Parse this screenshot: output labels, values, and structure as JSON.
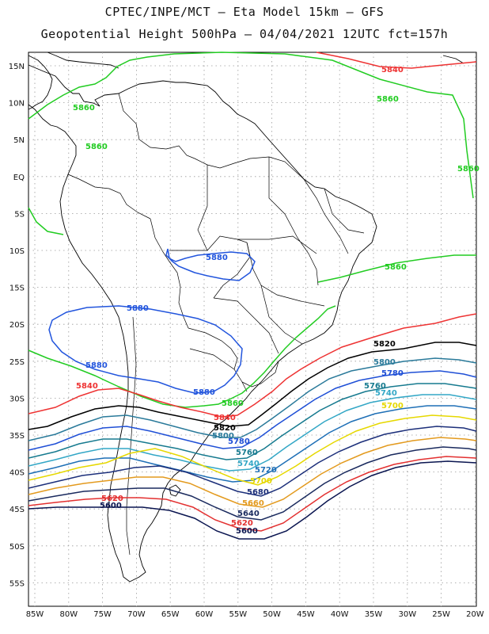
{
  "header": {
    "line1": "CPTEC/INPE/MCT –  Eta Model 15km – GFS",
    "line2": "Geopotential Height 500hPa – 04/04/2021 12UTC fct=157h"
  },
  "axes": {
    "lat_labels": [
      "15N",
      "10N",
      "5N",
      "EQ",
      "5S",
      "10S",
      "15S",
      "20S",
      "25S",
      "30S",
      "35S",
      "40S",
      "45S",
      "50S",
      "55S"
    ],
    "lon_labels": [
      "85W",
      "80W",
      "75W",
      "70W",
      "65W",
      "60W",
      "55W",
      "50W",
      "45W",
      "40W",
      "35W",
      "30W",
      "25W",
      "20W"
    ]
  },
  "contours": [
    {
      "value": "5880",
      "color": "#2255dd"
    },
    {
      "value": "5860",
      "color": "#22cc22"
    },
    {
      "value": "5840",
      "color": "#ee3333"
    },
    {
      "value": "5820",
      "color": "#000000"
    },
    {
      "value": "5800",
      "color": "#2a7a9a"
    },
    {
      "value": "5780",
      "color": "#1f4fd6"
    },
    {
      "value": "5760",
      "color": "#167a8f"
    },
    {
      "value": "5740",
      "color": "#33a7c6"
    },
    {
      "value": "5720",
      "color": "#1e6fb6"
    },
    {
      "value": "5700",
      "color": "#e6d800"
    },
    {
      "value": "5680",
      "color": "#1c2f7a"
    },
    {
      "value": "5660",
      "color": "#e39a1e"
    },
    {
      "value": "5640",
      "color": "#1a2a5e"
    },
    {
      "value": "5620",
      "color": "#e33030"
    },
    {
      "value": "5600",
      "color": "#0a1550"
    }
  ],
  "colors": {
    "coastline": "#000000",
    "border": "#000000",
    "grid": "#9a9a9a",
    "frame": "#000000"
  }
}
